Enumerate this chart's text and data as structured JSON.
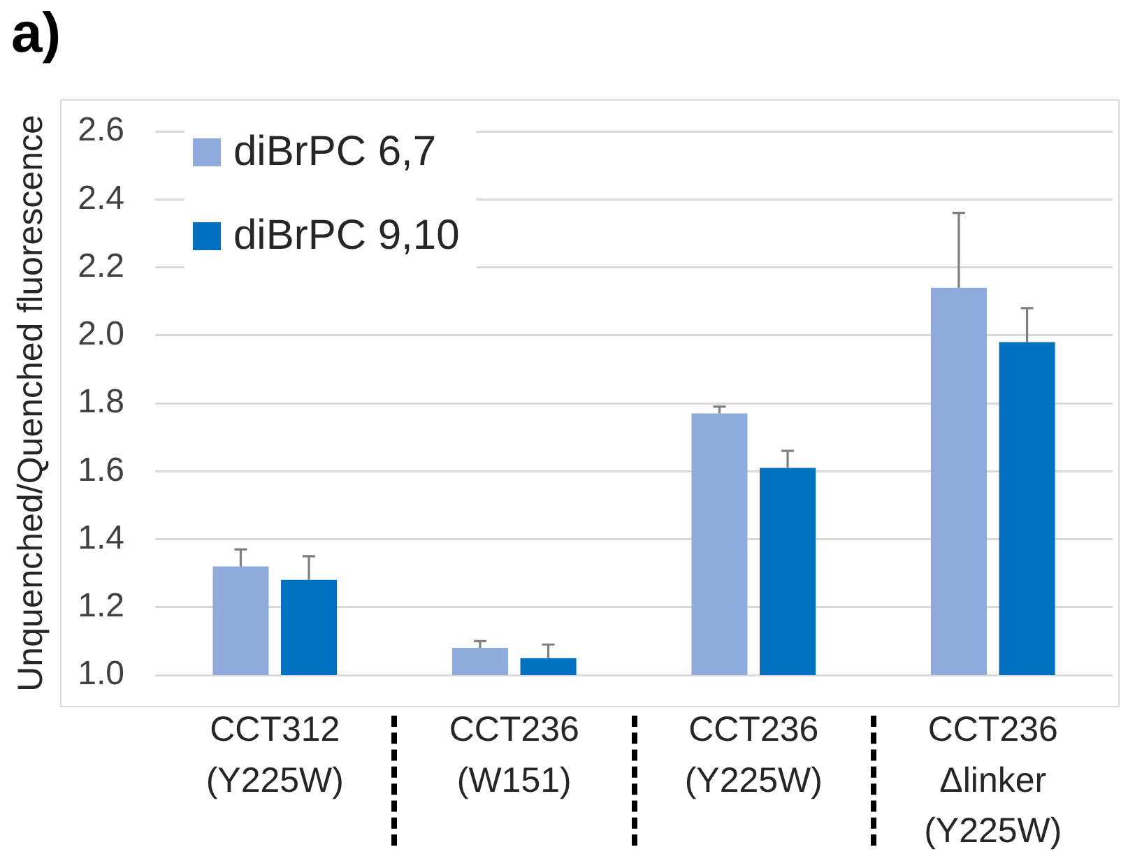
{
  "chart_data": {
    "type": "bar",
    "title": "a)",
    "ylabel": "Unquenched/Quenched fluorescence",
    "categories": [
      "CCT312\n(Y225W)",
      "CCT236\n(W151)",
      "CCT236\n(Y225W)",
      "CCT236\nΔlinker\n(Y225W)"
    ],
    "series": [
      {
        "name": "diBrPC 6,7",
        "color": "#8faadc",
        "values": [
          1.32,
          1.08,
          1.77,
          2.14
        ],
        "errors": [
          [
            1.32,
            1.37
          ],
          [
            1.08,
            1.1
          ],
          [
            1.77,
            1.79
          ],
          [
            2.14,
            2.36
          ]
        ]
      },
      {
        "name": "diBrPC 9,10",
        "color": "#0070c0",
        "values": [
          1.28,
          1.05,
          1.61,
          1.98
        ],
        "errors": [
          [
            1.28,
            1.35
          ],
          [
            1.05,
            1.09
          ],
          [
            1.61,
            1.66
          ],
          [
            1.98,
            2.08
          ]
        ]
      }
    ],
    "ylim": [
      1.0,
      2.6
    ],
    "yticks": [
      {
        "value": 1,
        "label": "1.0"
      },
      1.2,
      1.4,
      1.6,
      1.8,
      {
        "value": 2,
        "label": "2.0"
      },
      2.2,
      2.4,
      2.6
    ],
    "grid": "y",
    "legend": "top left"
  }
}
